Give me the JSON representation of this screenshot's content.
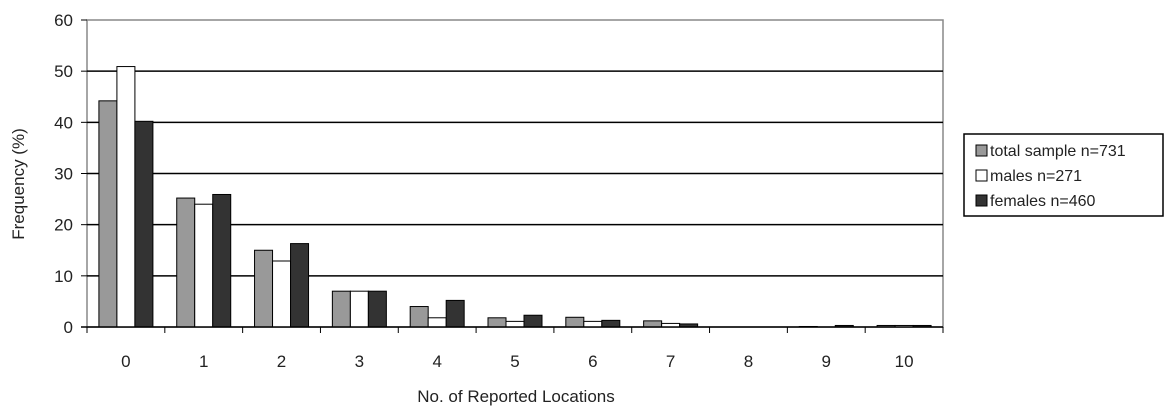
{
  "chart_data": {
    "type": "bar",
    "title": "",
    "xlabel": "No. of Reported Locations",
    "ylabel": "Frequency (%)",
    "ylim": [
      0,
      60
    ],
    "yticks": [
      0,
      10,
      20,
      30,
      40,
      50,
      60
    ],
    "grid": true,
    "legend_position": "right",
    "categories": [
      "0",
      "1",
      "2",
      "3",
      "4",
      "5",
      "6",
      "7",
      "8",
      "9",
      "10"
    ],
    "series": [
      {
        "name": "total sample n=731",
        "color": "#999999",
        "values": [
          44.2,
          25.2,
          15.0,
          7.0,
          4.0,
          1.8,
          1.9,
          1.2,
          0.0,
          0.1,
          0.3
        ]
      },
      {
        "name": "males n=271",
        "color": "#ffffff",
        "values": [
          50.9,
          24.0,
          12.9,
          7.0,
          1.8,
          1.1,
          1.1,
          0.7,
          0.0,
          0.0,
          0.3
        ]
      },
      {
        "name": "females n=460",
        "color": "#333333",
        "values": [
          40.2,
          25.9,
          16.3,
          7.0,
          5.2,
          2.3,
          1.3,
          0.6,
          0.0,
          0.3,
          0.3
        ]
      }
    ]
  }
}
